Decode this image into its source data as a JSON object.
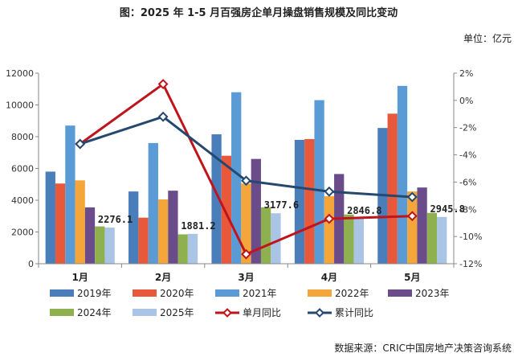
{
  "chart_data": {
    "type": "bar",
    "title": "图：2025 年 1-5 月百强房企单月操盘销售规模及同比变动",
    "unit_label": "单位：亿元",
    "source": "数据来源：CRIC中国房地产决策咨询系统",
    "categories": [
      "1月",
      "2月",
      "3月",
      "4月",
      "5月"
    ],
    "left_axis": {
      "ylim": [
        0,
        12000
      ],
      "ticks": [
        "0",
        "2000",
        "4000",
        "6000",
        "8000",
        "10000",
        "12000"
      ]
    },
    "right_axis": {
      "ylim": [
        -12,
        2
      ],
      "ticks": [
        "-12%",
        "-10%",
        "-8%",
        "-6%",
        "-4%",
        "-2%",
        "0%",
        "2%"
      ]
    },
    "series": [
      {
        "name": "2019年",
        "color": "#4a7ebb",
        "values": [
          5800,
          4550,
          8150,
          7800,
          8550
        ]
      },
      {
        "name": "2020年",
        "color": "#e8583a",
        "values": [
          5050,
          2900,
          6800,
          7850,
          9450
        ]
      },
      {
        "name": "2021年",
        "color": "#5b9bd5",
        "values": [
          8700,
          7600,
          10800,
          10300,
          11200
        ]
      },
      {
        "name": "2022年",
        "color": "#f4a63a",
        "values": [
          5250,
          4050,
          5050,
          4250,
          4550
        ]
      },
      {
        "name": "2023年",
        "color": "#6b4c8a",
        "values": [
          3550,
          4600,
          6600,
          5650,
          4800
        ]
      },
      {
        "name": "2024年",
        "color": "#8fb04e",
        "values": [
          2350,
          1850,
          3550,
          3100,
          3200
        ]
      },
      {
        "name": "2025年",
        "color": "#a9c4e4",
        "values": [
          2276.1,
          1881.2,
          3177.6,
          2846.8,
          2945.8
        ]
      }
    ],
    "data_labels": [
      "2276.1",
      "1881.2",
      "3177.6",
      "2846.8",
      "2945.8"
    ],
    "lines": [
      {
        "name": "单月同比",
        "color": "#c0141c",
        "values": [
          -3.2,
          1.2,
          -11.3,
          -8.7,
          -8.5
        ]
      },
      {
        "name": "累计同比",
        "color": "#24486e",
        "values": [
          -3.2,
          -1.2,
          -5.9,
          -6.7,
          -7.1
        ]
      }
    ],
    "legend_position": "bottom"
  }
}
